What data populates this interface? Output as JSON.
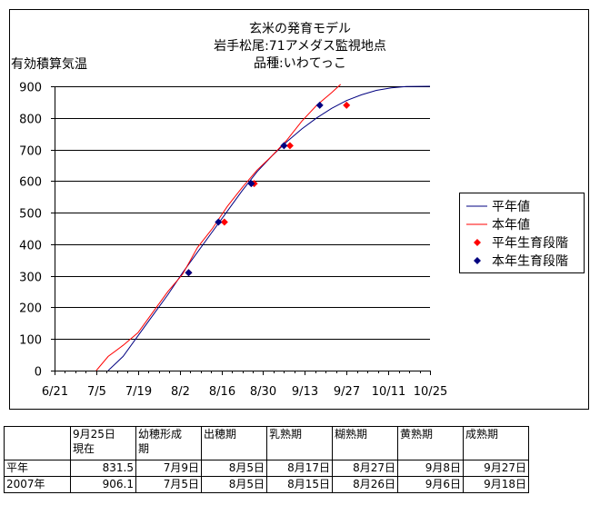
{
  "chart_data": {
    "type": "line",
    "title_lines": [
      "玄米の発育モデル",
      "岩手松尾:71アメダス監視地点",
      "品種:いわてっこ"
    ],
    "ylabel": "有効積算気温",
    "ylim": [
      0,
      900
    ],
    "yticks": [
      0,
      100,
      200,
      300,
      400,
      500,
      600,
      700,
      800,
      900
    ],
    "xlim": [
      "2007-06-21",
      "2007-10-25"
    ],
    "xticks": [
      "2007-06-21",
      "2007-07-05",
      "2007-07-19",
      "2007-08-02",
      "2007-08-16",
      "2007-08-30",
      "2007-09-13",
      "2007-09-27",
      "2007-10-11",
      "2007-10-25"
    ],
    "xtick_labels": [
      "6/21",
      "7/5",
      "7/19",
      "8/2",
      "8/16",
      "8/30",
      "9/13",
      "9/27",
      "10/11",
      "10/25"
    ],
    "grid": "horizontal",
    "legend_position": "right",
    "series": [
      {
        "name": "平年値",
        "kind": "line",
        "color": "#000080",
        "points": [
          [
            "2007-07-09",
            0
          ],
          [
            "2007-07-14",
            45
          ],
          [
            "2007-07-19",
            110
          ],
          [
            "2007-07-24",
            175
          ],
          [
            "2007-07-29",
            240
          ],
          [
            "2007-08-03",
            310
          ],
          [
            "2007-08-08",
            375
          ],
          [
            "2007-08-13",
            440
          ],
          [
            "2007-08-18",
            505
          ],
          [
            "2007-08-23",
            570
          ],
          [
            "2007-08-28",
            630
          ],
          [
            "2007-09-02",
            680
          ],
          [
            "2007-09-07",
            725
          ],
          [
            "2007-09-12",
            765
          ],
          [
            "2007-09-17",
            800
          ],
          [
            "2007-09-22",
            830
          ],
          [
            "2007-09-27",
            855
          ],
          [
            "2007-10-02",
            873
          ],
          [
            "2007-10-07",
            887
          ],
          [
            "2007-10-12",
            895
          ],
          [
            "2007-10-17",
            899
          ],
          [
            "2007-10-25",
            900
          ]
        ]
      },
      {
        "name": "本年値",
        "kind": "line",
        "color": "#ff0000",
        "points": [
          [
            "2007-07-05",
            0
          ],
          [
            "2007-07-09",
            45
          ],
          [
            "2007-07-14",
            80
          ],
          [
            "2007-07-19",
            120
          ],
          [
            "2007-07-24",
            185
          ],
          [
            "2007-07-29",
            250
          ],
          [
            "2007-08-03",
            305
          ],
          [
            "2007-08-08",
            390
          ],
          [
            "2007-08-13",
            450
          ],
          [
            "2007-08-18",
            520
          ],
          [
            "2007-08-23",
            580
          ],
          [
            "2007-08-28",
            635
          ],
          [
            "2007-09-02",
            680
          ],
          [
            "2007-09-07",
            730
          ],
          [
            "2007-09-12",
            790
          ],
          [
            "2007-09-17",
            840
          ],
          [
            "2007-09-22",
            880
          ],
          [
            "2007-09-25",
            906
          ]
        ]
      },
      {
        "name": "平年生育段階",
        "kind": "marker",
        "color": "#ff0000",
        "points": [
          [
            "2007-07-09",
            0
          ],
          [
            "2007-08-05",
            310
          ],
          [
            "2007-08-17",
            470
          ],
          [
            "2007-08-27",
            592
          ],
          [
            "2007-09-08",
            712
          ],
          [
            "2007-09-27",
            840
          ]
        ]
      },
      {
        "name": "本年生育段階",
        "kind": "marker",
        "color": "#000080",
        "points": [
          [
            "2007-07-05",
            0
          ],
          [
            "2007-08-05",
            310
          ],
          [
            "2007-08-15",
            470
          ],
          [
            "2007-08-26",
            592
          ],
          [
            "2007-09-06",
            712
          ],
          [
            "2007-09-18",
            840
          ]
        ]
      }
    ]
  },
  "table": {
    "headers": [
      "",
      "9月25日\n現在",
      "幼穂形成\n期",
      "出穂期",
      "乳熟期",
      "糊熟期",
      "黄熟期",
      "成熟期"
    ],
    "rows": [
      [
        "平年",
        "831.5",
        "7月9日",
        "8月5日",
        "8月17日",
        "8月27日",
        "9月8日",
        "9月27日"
      ],
      [
        "2007年",
        "906.1",
        "7月5日",
        "8月5日",
        "8月15日",
        "8月26日",
        "9月6日",
        "9月18日"
      ]
    ]
  }
}
